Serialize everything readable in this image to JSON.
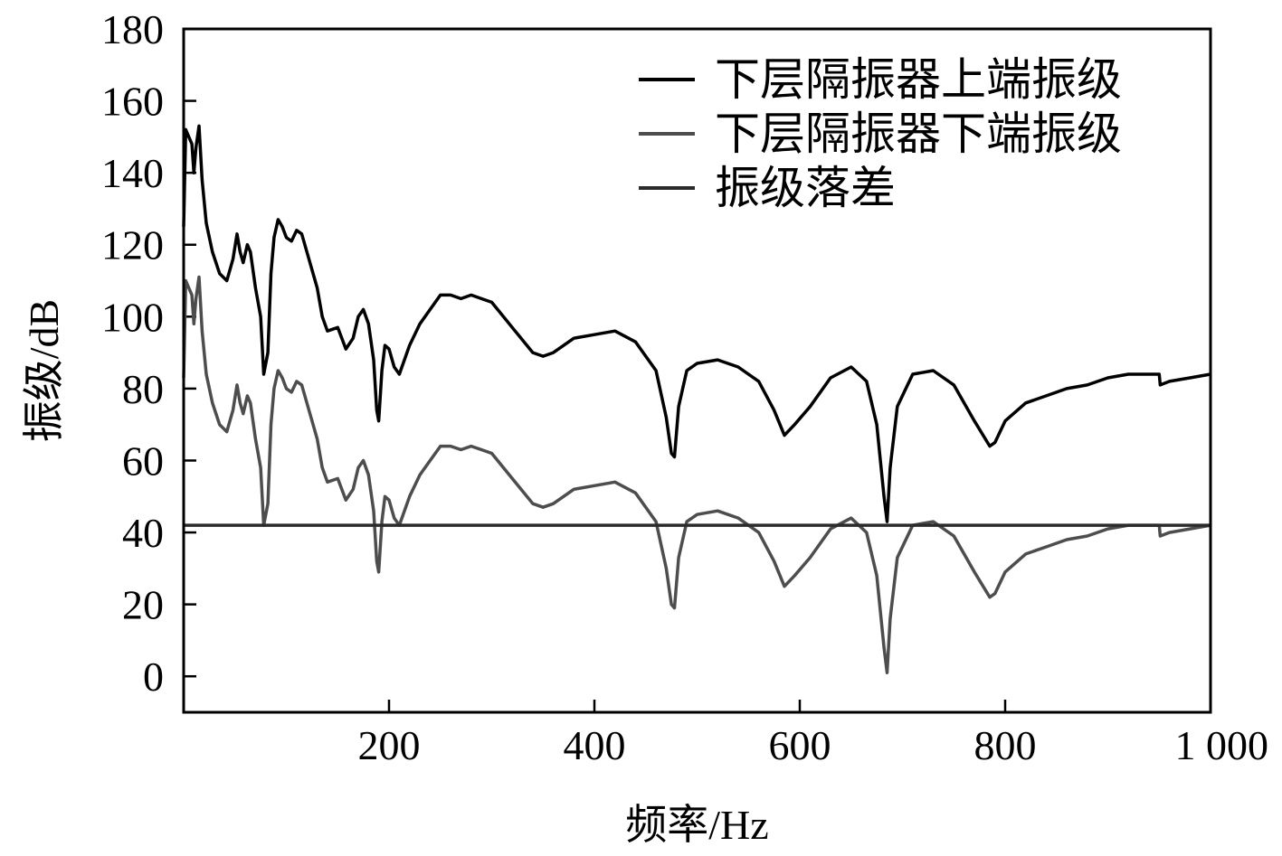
{
  "chart_data": {
    "type": "line",
    "xlabel": "频率/Hz",
    "ylabel": "振级/dB",
    "xlim": [
      0,
      1000
    ],
    "ylim": [
      -10,
      180
    ],
    "x_ticks": [
      200,
      400,
      600,
      800,
      1000
    ],
    "x_tick_labels": [
      "200",
      "400",
      "600",
      "800",
      "1 000"
    ],
    "y_ticks": [
      0,
      20,
      40,
      60,
      80,
      100,
      120,
      140,
      160,
      180
    ],
    "y_tick_labels": [
      "0",
      "20",
      "40",
      "60",
      "80",
      "100",
      "120",
      "140",
      "160",
      "180"
    ],
    "grid": false,
    "legend_position": "top-right",
    "series": [
      {
        "name": "下层隔振器上端振级",
        "color": "#000000",
        "x": [
          0,
          2,
          5,
          8,
          10,
          12,
          15,
          18,
          22,
          28,
          35,
          42,
          48,
          52,
          55,
          58,
          62,
          65,
          70,
          75,
          78,
          82,
          85,
          88,
          92,
          96,
          100,
          105,
          110,
          115,
          120,
          125,
          130,
          135,
          140,
          150,
          158,
          165,
          170,
          175,
          180,
          185,
          188,
          190,
          193,
          196,
          200,
          205,
          210,
          220,
          230,
          240,
          250,
          260,
          270,
          280,
          290,
          300,
          320,
          340,
          350,
          360,
          380,
          400,
          420,
          440,
          460,
          470,
          475,
          478,
          482,
          490,
          500,
          520,
          540,
          560,
          575,
          585,
          595,
          610,
          630,
          650,
          665,
          675,
          682,
          685,
          688,
          695,
          710,
          730,
          750,
          770,
          785,
          790,
          800,
          820,
          840,
          860,
          880,
          900,
          920,
          940,
          950,
          951,
          960,
          980,
          1000
        ],
        "y": [
          125,
          152,
          150,
          148,
          140,
          147,
          153,
          138,
          126,
          118,
          112,
          110,
          116,
          123,
          118,
          115,
          120,
          118,
          108,
          100,
          84,
          90,
          112,
          122,
          127,
          125,
          122,
          121,
          124,
          123,
          118,
          113,
          108,
          100,
          96,
          97,
          91,
          94,
          100,
          102,
          98,
          88,
          74,
          71,
          85,
          92,
          91,
          86,
          84,
          92,
          98,
          102,
          106,
          106,
          105,
          106,
          105,
          104,
          97,
          90,
          89,
          90,
          94,
          95,
          96,
          93,
          85,
          72,
          62,
          61,
          75,
          85,
          87,
          88,
          86,
          82,
          74,
          67,
          70,
          75,
          83,
          86,
          82,
          70,
          50,
          43,
          58,
          75,
          84,
          85,
          81,
          71,
          64,
          65,
          71,
          76,
          78,
          80,
          81,
          83,
          84,
          84,
          84,
          81,
          82,
          83,
          84
        ]
      },
      {
        "name": "下层隔振器下端振级",
        "color": "#4d4d4d",
        "x": [
          0,
          2,
          5,
          8,
          10,
          12,
          15,
          18,
          22,
          28,
          35,
          42,
          48,
          52,
          55,
          58,
          62,
          65,
          70,
          75,
          78,
          82,
          85,
          88,
          92,
          96,
          100,
          105,
          110,
          115,
          120,
          125,
          130,
          135,
          140,
          150,
          158,
          165,
          170,
          175,
          180,
          185,
          188,
          190,
          193,
          196,
          200,
          205,
          210,
          220,
          230,
          240,
          250,
          260,
          270,
          280,
          290,
          300,
          320,
          340,
          350,
          360,
          380,
          400,
          420,
          440,
          460,
          470,
          475,
          478,
          482,
          490,
          500,
          520,
          540,
          560,
          575,
          585,
          595,
          610,
          630,
          650,
          665,
          675,
          682,
          685,
          688,
          695,
          710,
          730,
          750,
          770,
          785,
          790,
          800,
          820,
          840,
          860,
          880,
          900,
          920,
          940,
          950,
          951,
          960,
          980,
          1000
        ],
        "y": [
          83,
          110,
          108,
          106,
          98,
          105,
          111,
          96,
          84,
          76,
          70,
          68,
          74,
          81,
          76,
          73,
          78,
          76,
          66,
          58,
          42,
          48,
          70,
          80,
          85,
          83,
          80,
          79,
          82,
          81,
          76,
          71,
          66,
          58,
          54,
          55,
          49,
          52,
          58,
          60,
          56,
          46,
          32,
          29,
          43,
          50,
          49,
          44,
          42,
          50,
          56,
          60,
          64,
          64,
          63,
          64,
          63,
          62,
          55,
          48,
          47,
          48,
          52,
          53,
          54,
          51,
          43,
          30,
          20,
          19,
          33,
          43,
          45,
          46,
          44,
          40,
          32,
          25,
          28,
          33,
          41,
          44,
          40,
          28,
          8,
          1,
          16,
          33,
          42,
          43,
          39,
          29,
          22,
          23,
          29,
          34,
          36,
          38,
          39,
          41,
          42,
          42,
          42,
          39,
          40,
          41,
          42
        ]
      },
      {
        "name": "振级落差",
        "color": "#2b2b2b",
        "x": [
          0,
          1000
        ],
        "y": [
          42,
          42
        ]
      }
    ]
  }
}
